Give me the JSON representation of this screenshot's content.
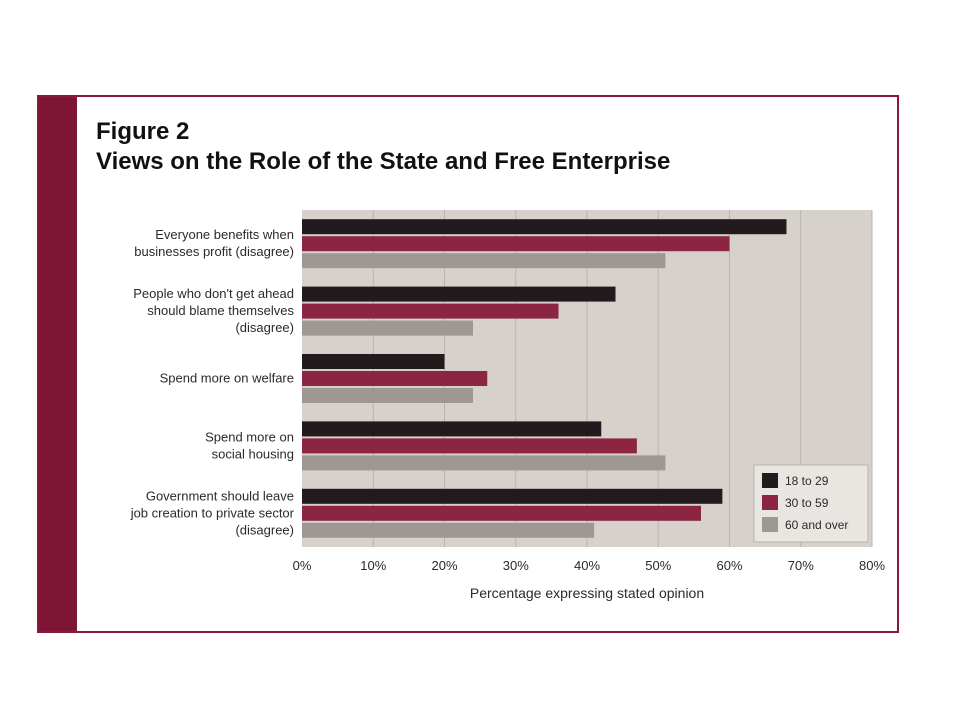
{
  "figure": {
    "label": "Figure 2",
    "title": "Views on the Role of the State and Free Enterprise"
  },
  "chart_data": {
    "type": "bar",
    "orientation": "horizontal",
    "categories": [
      [
        "Everyone benefits when",
        "businesses profit (disagree)"
      ],
      [
        "People who don't get ahead",
        "should blame themselves",
        "(disagree)"
      ],
      [
        "Spend more on welfare"
      ],
      [
        "Spend more on",
        "social housing"
      ],
      [
        "Government should leave",
        "job creation to private sector",
        "(disagree)"
      ]
    ],
    "series": [
      {
        "name": "18 to 29",
        "color": "#231a1e",
        "values": [
          68,
          44,
          20,
          42,
          59
        ]
      },
      {
        "name": "30 to 59",
        "color": "#8c2443",
        "values": [
          60,
          36,
          26,
          47,
          56
        ]
      },
      {
        "name": "60 and over",
        "color": "#9e9893",
        "values": [
          51,
          24,
          24,
          51,
          41
        ]
      }
    ],
    "xlim": [
      0,
      80
    ],
    "xticks": [
      0,
      10,
      20,
      30,
      40,
      50,
      60,
      70,
      80
    ],
    "tick_suffix": "%",
    "xlabel": "Percentage expressing stated opinion",
    "ylabel": "",
    "grid": true,
    "legend_position": "bottom-right",
    "plot_background": "#d6d1cb"
  }
}
